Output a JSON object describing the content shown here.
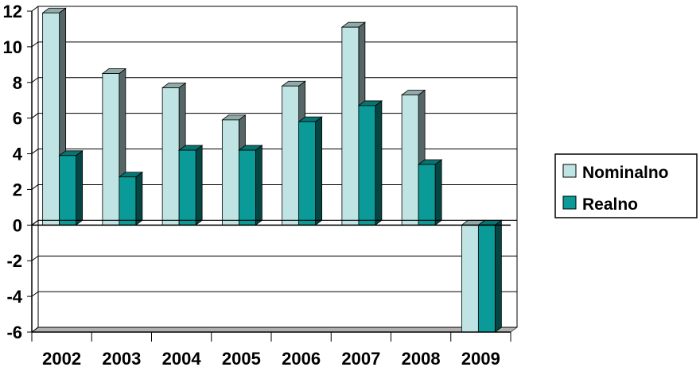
{
  "chart_data": {
    "type": "bar",
    "categories": [
      "2002",
      "2003",
      "2004",
      "2005",
      "2006",
      "2007",
      "2008",
      "2009"
    ],
    "series": [
      {
        "name": "Nominalno",
        "values": [
          11.9,
          8.5,
          7.7,
          5.9,
          7.8,
          11.1,
          7.3,
          -6.0
        ]
      },
      {
        "name": "Realno",
        "values": [
          3.9,
          2.7,
          4.2,
          4.2,
          5.8,
          6.7,
          3.4,
          -6.0
        ]
      }
    ],
    "y_ticks": [
      "-6",
      "-4",
      "-2",
      "0",
      "2",
      "4",
      "6",
      "8",
      "10",
      "12"
    ],
    "ylim": [
      -6,
      12
    ],
    "grid": true,
    "legend_position": "right",
    "three_d": true,
    "colors": {
      "Nominalno": "#c0e3e3",
      "Realno": "#0a9b98",
      "grid": "#000000",
      "floor": "#b0b0b0"
    }
  }
}
